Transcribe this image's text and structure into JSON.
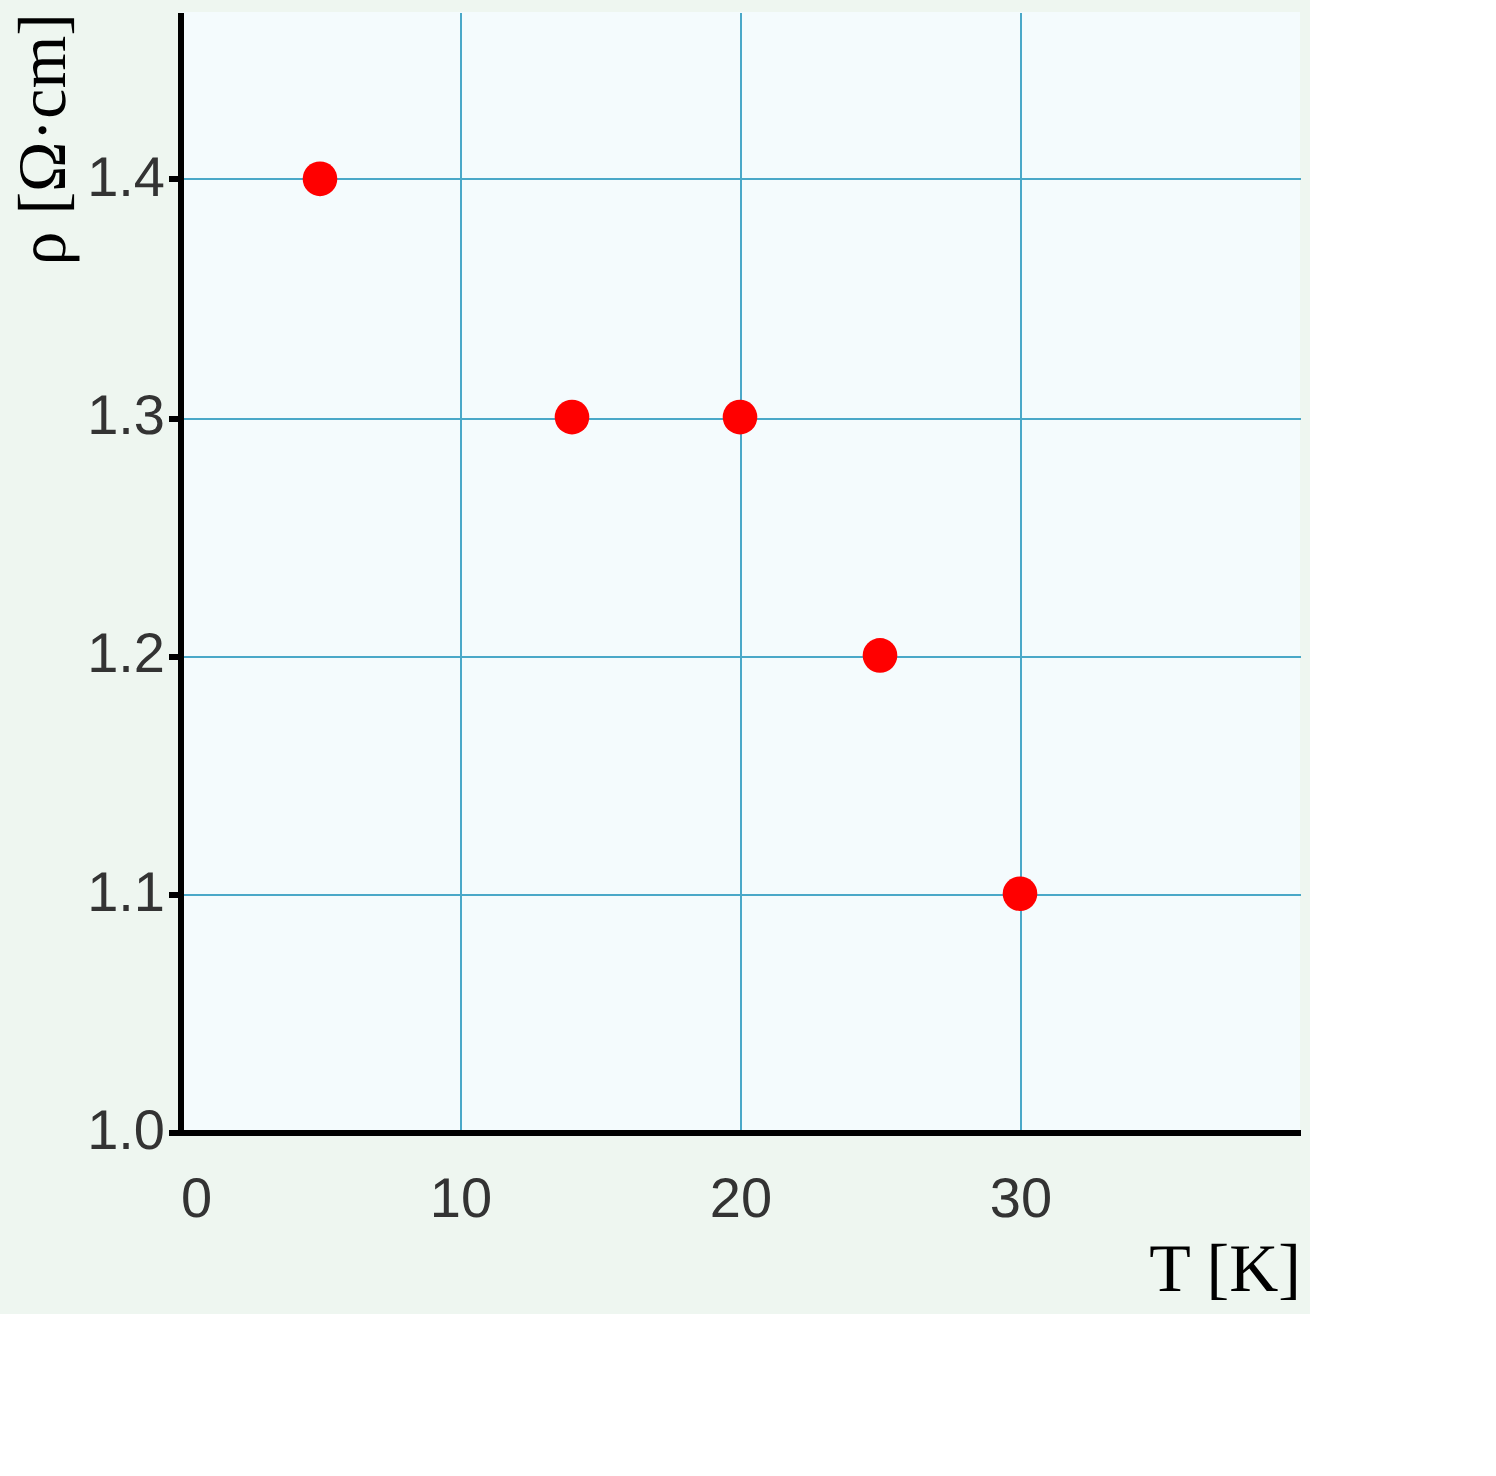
{
  "chart_data": {
    "type": "scatter",
    "xlabel": "T [K]",
    "ylabel": "ρ [Ω·cm]",
    "x": [
      5,
      14,
      20,
      25,
      30
    ],
    "series": [
      {
        "color": "#ff0000",
        "values": [
          1.4,
          1.3,
          1.3,
          1.2,
          1.1
        ]
      }
    ],
    "xlim": [
      0,
      40
    ],
    "ylim": [
      1.0,
      1.47
    ],
    "xticks": [
      0,
      10,
      20,
      30
    ],
    "yticks": [
      {
        "value": 1.0,
        "label": "1.0"
      },
      1.1,
      1.2,
      1.3,
      1.4
    ],
    "grid": true,
    "marker": "circle",
    "legend": false
  }
}
